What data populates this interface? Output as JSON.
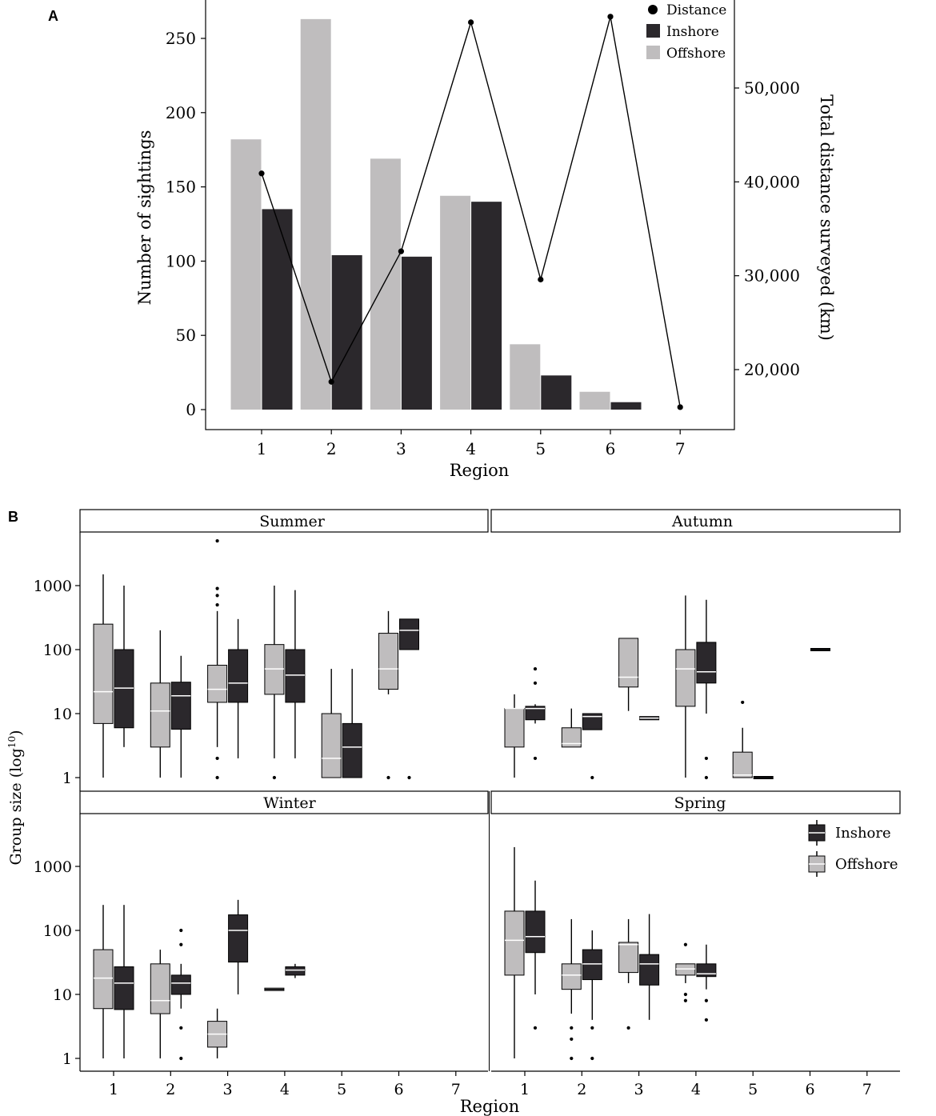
{
  "colors": {
    "inshore": "#2b282c",
    "offshore": "#bfbdbe",
    "line": "#000000",
    "median_on_dark": "#ffffff",
    "median_on_light": "#ffffff",
    "strip_fill": "#ffffff"
  },
  "chart_data": [
    {
      "panel_label": "A",
      "type": "bar",
      "title": "",
      "xlabel": "Region",
      "ylabel": "Number of sightings",
      "y2label": "Total distance surveyed (km)",
      "categories": [
        "1",
        "2",
        "3",
        "4",
        "5",
        "6",
        "7"
      ],
      "ylim": [
        0,
        270
      ],
      "yticks": [
        0,
        50,
        100,
        150,
        200,
        250
      ],
      "ytick_labels": [
        "0",
        "50",
        "100",
        "150",
        "200",
        "250"
      ],
      "y2lim": [
        14700,
        57900
      ],
      "y2ticks": [
        20000,
        30000,
        40000,
        50000
      ],
      "y2tick_labels": [
        "20,000",
        "30,000",
        "40,000",
        "50,000"
      ],
      "series": [
        {
          "name": "Offshore",
          "type": "bar",
          "values": [
            182,
            263,
            169,
            144,
            44,
            12,
            0
          ]
        },
        {
          "name": "Inshore",
          "type": "bar",
          "values": [
            135,
            104,
            103,
            140,
            23,
            5,
            0
          ]
        },
        {
          "name": "Distance",
          "type": "line",
          "axis": "right",
          "values": [
            40900,
            18700,
            32600,
            57000,
            29600,
            57600,
            16000
          ]
        }
      ],
      "legend": {
        "position": "top-right",
        "entries": [
          "Distance",
          "Inshore",
          "Offshore"
        ]
      }
    },
    {
      "panel_label": "B",
      "type": "boxplot",
      "xlabel": "Region",
      "ylabel": "Group size (log",
      "ylabel_sup": "10",
      "ylabel_close": ")",
      "yscale": "log10",
      "ylim": [
        0.8,
        6000
      ],
      "yticks": [
        1,
        10,
        100,
        1000
      ],
      "ytick_labels": [
        "1",
        "10",
        "100",
        "1000"
      ],
      "categories": [
        "1",
        "2",
        "3",
        "4",
        "5",
        "6",
        "7"
      ],
      "legend": {
        "position": "right",
        "entries": [
          "Inshore",
          "Offshore"
        ]
      },
      "panels": [
        {
          "name": "Summer",
          "boxes": [
            {
              "region": 1,
              "group": "Offshore",
              "q1": 7,
              "median": 22,
              "q3": 250,
              "low": 1,
              "high": 1500,
              "outliers": []
            },
            {
              "region": 1,
              "group": "Inshore",
              "q1": 6,
              "median": 25,
              "q3": 100,
              "low": 3,
              "high": 1000,
              "outliers": []
            },
            {
              "region": 2,
              "group": "Offshore",
              "q1": 3,
              "median": 11,
              "q3": 30,
              "low": 1,
              "high": 200,
              "outliers": []
            },
            {
              "region": 2,
              "group": "Inshore",
              "q1": 5.7,
              "median": 19,
              "q3": 31,
              "low": 1,
              "high": 80,
              "outliers": []
            },
            {
              "region": 3,
              "group": "Offshore",
              "q1": 15,
              "median": 24,
              "q3": 57,
              "low": 3,
              "high": 400,
              "outliers": [
                1,
                2,
                500,
                700,
                900,
                5000
              ]
            },
            {
              "region": 3,
              "group": "Inshore",
              "q1": 15,
              "median": 30,
              "q3": 100,
              "low": 2,
              "high": 300,
              "outliers": []
            },
            {
              "region": 4,
              "group": "Offshore",
              "q1": 20,
              "median": 50,
              "q3": 120,
              "low": 2,
              "high": 1000,
              "outliers": [
                1
              ]
            },
            {
              "region": 4,
              "group": "Inshore",
              "q1": 15,
              "median": 40,
              "q3": 100,
              "low": 2,
              "high": 850,
              "outliers": []
            },
            {
              "region": 5,
              "group": "Offshore",
              "q1": 1,
              "median": 2,
              "q3": 10,
              "low": 1,
              "high": 50,
              "outliers": []
            },
            {
              "region": 5,
              "group": "Inshore",
              "q1": 1,
              "median": 3,
              "q3": 7,
              "low": 1,
              "high": 50,
              "outliers": []
            },
            {
              "region": 6,
              "group": "Offshore",
              "q1": 24,
              "median": 50,
              "q3": 180,
              "low": 20,
              "high": 400,
              "outliers": [
                1
              ]
            },
            {
              "region": 6,
              "group": "Inshore",
              "q1": 100,
              "median": 200,
              "q3": 300,
              "low": 100,
              "high": 300,
              "outliers": [
                1
              ]
            }
          ]
        },
        {
          "name": "Autumn",
          "boxes": [
            {
              "region": 1,
              "group": "Offshore",
              "q1": 3,
              "median": 12,
              "q3": 12,
              "low": 1,
              "high": 20,
              "outliers": []
            },
            {
              "region": 1,
              "group": "Inshore",
              "q1": 8,
              "median": 12,
              "q3": 13,
              "low": 7,
              "high": 14,
              "outliers": [
                2,
                30,
                50
              ]
            },
            {
              "region": 2,
              "group": "Offshore",
              "q1": 3,
              "median": 3.4,
              "q3": 6,
              "low": 3,
              "high": 12,
              "outliers": []
            },
            {
              "region": 2,
              "group": "Inshore",
              "q1": 5.6,
              "median": 9,
              "q3": 10,
              "low": 5.6,
              "high": 10,
              "outliers": [
                1
              ]
            },
            {
              "region": 3,
              "group": "Offshore",
              "q1": 26,
              "median": 37,
              "q3": 150,
              "low": 11,
              "high": 150,
              "outliers": []
            },
            {
              "region": 3,
              "group": "Inshore",
              "q1": 8,
              "median": 8.5,
              "q3": 9,
              "low": 8,
              "high": 9,
              "outliers": []
            },
            {
              "region": 4,
              "group": "Offshore",
              "q1": 13,
              "median": 50,
              "q3": 100,
              "low": 1,
              "high": 700,
              "outliers": []
            },
            {
              "region": 4,
              "group": "Inshore",
              "q1": 30,
              "median": 45,
              "q3": 130,
              "low": 10,
              "high": 600,
              "outliers": [
                1,
                2
              ]
            },
            {
              "region": 5,
              "group": "Offshore",
              "q1": 1,
              "median": 1.1,
              "q3": 2.5,
              "low": 1,
              "high": 6,
              "outliers": [
                15
              ]
            },
            {
              "region": 5,
              "group": "Inshore",
              "q1": 1,
              "median": 1,
              "q3": 1,
              "low": 1,
              "high": 1,
              "outliers": []
            },
            {
              "region": 6,
              "group": "Inshore",
              "q1": 100,
              "median": 100,
              "q3": 100,
              "low": 100,
              "high": 100,
              "outliers": []
            }
          ]
        },
        {
          "name": "Winter",
          "boxes": [
            {
              "region": 1,
              "group": "Offshore",
              "q1": 6,
              "median": 18,
              "q3": 50,
              "low": 1,
              "high": 250,
              "outliers": []
            },
            {
              "region": 1,
              "group": "Inshore",
              "q1": 5.8,
              "median": 15,
              "q3": 27,
              "low": 1,
              "high": 250,
              "outliers": []
            },
            {
              "region": 2,
              "group": "Offshore",
              "q1": 5,
              "median": 8,
              "q3": 30,
              "low": 1,
              "high": 50,
              "outliers": []
            },
            {
              "region": 2,
              "group": "Inshore",
              "q1": 10,
              "median": 15,
              "q3": 20,
              "low": 6,
              "high": 30,
              "outliers": [
                1,
                3,
                60,
                100
              ]
            },
            {
              "region": 3,
              "group": "Offshore",
              "q1": 1.5,
              "median": 2.4,
              "q3": 3.8,
              "low": 1,
              "high": 6,
              "outliers": []
            },
            {
              "region": 3,
              "group": "Inshore",
              "q1": 32,
              "median": 100,
              "q3": 175,
              "low": 10,
              "high": 300,
              "outliers": []
            },
            {
              "region": 4,
              "group": "Offshore",
              "q1": 12,
              "median": 12,
              "q3": 12,
              "low": 12,
              "high": 12,
              "outliers": []
            },
            {
              "region": 4,
              "group": "Inshore",
              "q1": 20,
              "median": 24,
              "q3": 27,
              "low": 18,
              "high": 30,
              "outliers": []
            }
          ]
        },
        {
          "name": "Spring",
          "boxes": [
            {
              "region": 1,
              "group": "Offshore",
              "q1": 20,
              "median": 70,
              "q3": 200,
              "low": 1,
              "high": 2000,
              "outliers": []
            },
            {
              "region": 1,
              "group": "Inshore",
              "q1": 45,
              "median": 80,
              "q3": 200,
              "low": 10,
              "high": 600,
              "outliers": [
                3
              ]
            },
            {
              "region": 2,
              "group": "Offshore",
              "q1": 12,
              "median": 20,
              "q3": 30,
              "low": 5,
              "high": 150,
              "outliers": [
                1,
                2,
                3
              ]
            },
            {
              "region": 2,
              "group": "Inshore",
              "q1": 17,
              "median": 30,
              "q3": 50,
              "low": 4,
              "high": 100,
              "outliers": [
                1,
                3
              ]
            },
            {
              "region": 3,
              "group": "Offshore",
              "q1": 22,
              "median": 60,
              "q3": 65,
              "low": 15,
              "high": 150,
              "outliers": [
                3
              ]
            },
            {
              "region": 3,
              "group": "Inshore",
              "q1": 14,
              "median": 30,
              "q3": 42,
              "low": 4,
              "high": 180,
              "outliers": []
            },
            {
              "region": 4,
              "group": "Offshore",
              "q1": 20,
              "median": 25,
              "q3": 30,
              "low": 15,
              "high": 30,
              "outliers": [
                8,
                10,
                60
              ]
            },
            {
              "region": 4,
              "group": "Inshore",
              "q1": 19,
              "median": 21,
              "q3": 30,
              "low": 12,
              "high": 60,
              "outliers": [
                4,
                8
              ]
            }
          ]
        }
      ]
    }
  ]
}
